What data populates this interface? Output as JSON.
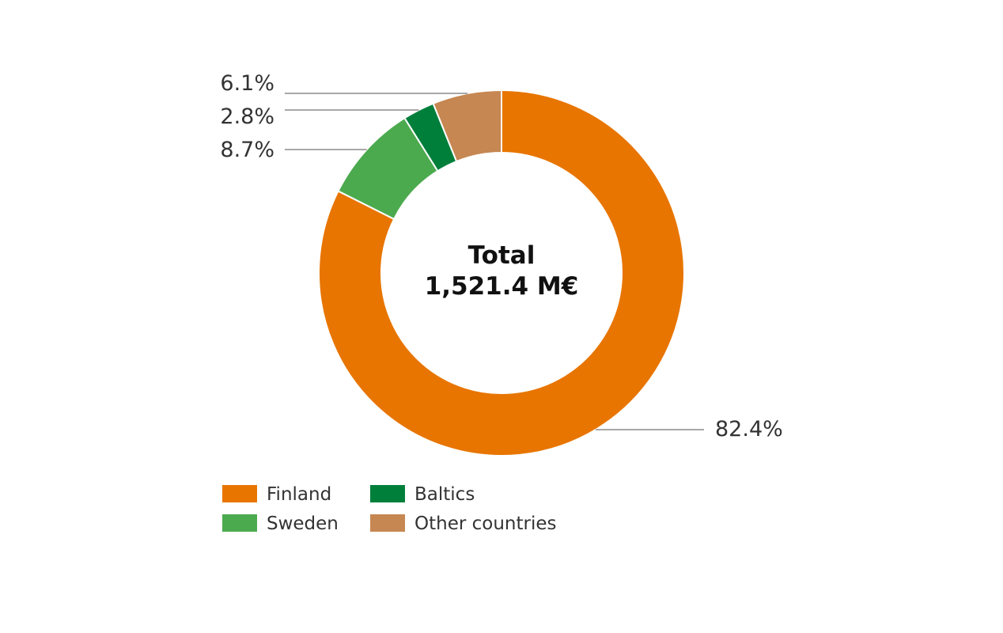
{
  "chart_data": {
    "type": "pie",
    "center_label": {
      "line1": "Total",
      "line2": "1,521.4 M€"
    },
    "legend_placement": "bottom-left",
    "slices": [
      {
        "name": "Finland",
        "value": 82.4,
        "label": "82.4%",
        "color": "#e87500"
      },
      {
        "name": "Sweden",
        "value": 8.7,
        "label": "8.7%",
        "color": "#4caa4e"
      },
      {
        "name": "Baltics",
        "value": 2.8,
        "label": "2.8%",
        "color": "#007f3b"
      },
      {
        "name": "Other countries",
        "value": 6.1,
        "label": "6.1%",
        "color": "#c68752"
      }
    ]
  }
}
